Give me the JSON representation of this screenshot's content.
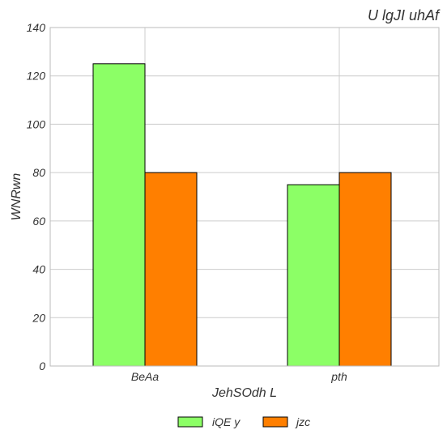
{
  "chart_data": {
    "type": "bar",
    "title": "U lgJI uhAf",
    "xlabel": "JehSOdh L",
    "ylabel": "WNRwn",
    "categories": [
      "BeAa",
      "pth"
    ],
    "series": [
      {
        "name": "iQE y",
        "values": [
          125,
          75
        ],
        "color": "#8cff66"
      },
      {
        "name": "jzc",
        "values": [
          80,
          80
        ],
        "color": "#ff7f00"
      }
    ],
    "ylim": [
      0,
      140
    ],
    "yticks": [
      0,
      20,
      40,
      60,
      80,
      100,
      120,
      140
    ],
    "grid": true,
    "legend_position": "bottom-center"
  }
}
